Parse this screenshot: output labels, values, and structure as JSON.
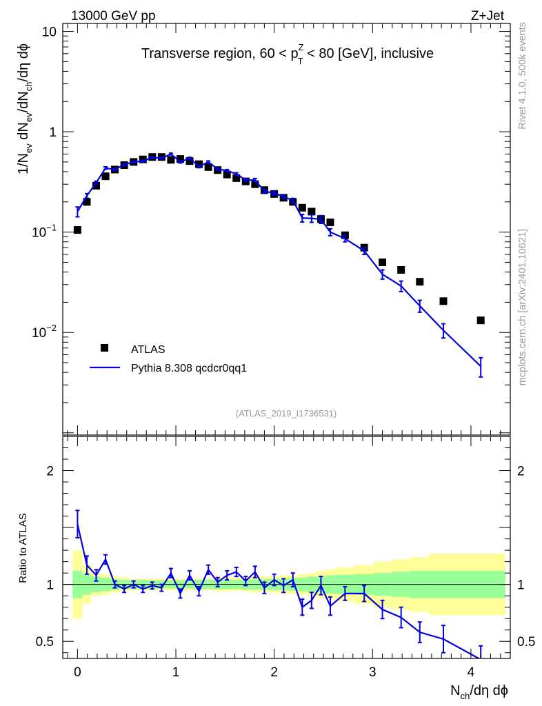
{
  "header": {
    "left": "13000 GeV pp",
    "right": "Z+Jet"
  },
  "side": {
    "rivet": "Rivet 4.1.0,  500k events",
    "mcplots": "mcplots.cern.ch [arXiv:2401.10621]"
  },
  "chart_data": {
    "type": "scatter",
    "title_parts": {
      "prefix": "Transverse region, 60 < p",
      "sup": "Z",
      "sub": "T",
      "suffix": " < 80 [GeV], inclusive"
    },
    "analysis_id": "(ATLAS_2019_I1736531)",
    "xlabel": "N_ch/dη dϕ",
    "ylabel": "1/N_ev dN_ev/dN_ch/dη dϕ",
    "ratio_ylabel": "Ratio to ATLAS",
    "xlim": [
      -0.15,
      4.4
    ],
    "ylim": [
      0.00095,
      12
    ],
    "ratio_ylim": [
      0.35,
      2.3
    ],
    "yscale": "log",
    "x_ticks": [
      "0",
      "1",
      "2",
      "3",
      "4"
    ],
    "y_ticks": [
      {
        "value": 10,
        "base": "10",
        "exp": ""
      },
      {
        "value": 1,
        "base": "1",
        "exp": ""
      },
      {
        "value": 0.1,
        "base": "10",
        "exp": "−1"
      },
      {
        "value": 0.01,
        "base": "10",
        "exp": "−2"
      }
    ],
    "ratio_y_ticks": [
      "0.5",
      "1",
      "2"
    ],
    "legend": {
      "position": "bottom-left",
      "data_label": "ATLAS",
      "mc_label": "Pythia 8.308 qcdcr0qq1"
    },
    "colors": {
      "data": "#000000",
      "mc": "#0000e0",
      "band_inner": "#99ff99",
      "band_outer": "#ffff99"
    },
    "data": {
      "name": "ATLAS",
      "x": [
        0.0,
        0.095,
        0.19,
        0.285,
        0.38,
        0.475,
        0.57,
        0.665,
        0.76,
        0.855,
        0.95,
        1.045,
        1.14,
        1.235,
        1.33,
        1.425,
        1.52,
        1.615,
        1.71,
        1.805,
        1.9,
        2.0,
        2.095,
        2.19,
        2.285,
        2.38,
        2.475,
        2.57,
        2.72,
        2.915,
        3.1,
        3.29,
        3.48,
        3.72,
        4.1
      ],
      "y": [
        0.105,
        0.2,
        0.29,
        0.36,
        0.42,
        0.465,
        0.5,
        0.53,
        0.56,
        0.56,
        0.525,
        0.535,
        0.51,
        0.475,
        0.445,
        0.415,
        0.375,
        0.345,
        0.32,
        0.3,
        0.262,
        0.24,
        0.22,
        0.2,
        0.175,
        0.16,
        0.135,
        0.125,
        0.093,
        0.07,
        0.05,
        0.042,
        0.032,
        0.0205,
        0.0132
      ]
    },
    "mc": {
      "name": "Pythia 8.308 qcdcr0qq1",
      "x": [
        0.0,
        0.095,
        0.19,
        0.285,
        0.38,
        0.475,
        0.57,
        0.665,
        0.76,
        0.855,
        0.95,
        1.045,
        1.14,
        1.235,
        1.33,
        1.425,
        1.52,
        1.615,
        1.71,
        1.805,
        1.9,
        2.0,
        2.095,
        2.19,
        2.285,
        2.38,
        2.475,
        2.57,
        2.72,
        2.915,
        3.1,
        3.29,
        3.48,
        3.72,
        4.1
      ],
      "y": [
        0.16,
        0.23,
        0.31,
        0.435,
        0.42,
        0.47,
        0.5,
        0.51,
        0.555,
        0.545,
        0.6,
        0.5,
        0.545,
        0.45,
        0.5,
        0.425,
        0.41,
        0.38,
        0.33,
        0.33,
        0.255,
        0.245,
        0.225,
        0.207,
        0.138,
        0.137,
        0.134,
        0.1,
        0.086,
        0.065,
        0.038,
        0.029,
        0.0184,
        0.0105,
        0.0046
      ],
      "yerr": [
        0.018,
        0.012,
        0.012,
        0.012,
        0.01,
        0.01,
        0.01,
        0.01,
        0.01,
        0.01,
        0.012,
        0.012,
        0.012,
        0.012,
        0.012,
        0.01,
        0.01,
        0.01,
        0.012,
        0.012,
        0.012,
        0.01,
        0.01,
        0.01,
        0.012,
        0.012,
        0.012,
        0.008,
        0.006,
        0.005,
        0.004,
        0.0035,
        0.0025,
        0.0017,
        0.001
      ],
      "ratio": [
        1.53,
        1.17,
        1.08,
        1.22,
        1.0,
        0.96,
        1.0,
        0.96,
        0.99,
        0.97,
        1.1,
        0.92,
        1.08,
        0.94,
        1.13,
        1.02,
        1.08,
        1.11,
        1.03,
        1.11,
        0.97,
        1.04,
        0.99,
        1.04,
        0.8,
        0.86,
        0.99,
        0.81,
        0.92,
        0.92,
        0.78,
        0.71,
        0.58,
        0.52,
        0.34
      ],
      "ratio_err": [
        0.12,
        0.08,
        0.05,
        0.04,
        0.03,
        0.03,
        0.03,
        0.03,
        0.03,
        0.03,
        0.04,
        0.04,
        0.04,
        0.04,
        0.04,
        0.04,
        0.04,
        0.04,
        0.04,
        0.05,
        0.05,
        0.05,
        0.06,
        0.06,
        0.07,
        0.07,
        0.08,
        0.08,
        0.06,
        0.07,
        0.08,
        0.09,
        0.09,
        0.12,
        0.12
      ]
    },
    "bands": {
      "edges": [
        -0.05,
        0.05,
        0.14,
        0.24,
        0.33,
        0.43,
        0.52,
        0.62,
        0.71,
        0.81,
        0.9,
        1.0,
        1.09,
        1.19,
        1.28,
        1.38,
        1.47,
        1.57,
        1.66,
        1.76,
        1.85,
        1.95,
        2.05,
        2.14,
        2.24,
        2.33,
        2.43,
        2.52,
        2.62,
        2.82,
        3.01,
        3.19,
        3.38,
        3.57,
        3.86,
        4.35
      ],
      "inner": [
        0.12,
        0.09,
        0.07,
        0.06,
        0.045,
        0.04,
        0.04,
        0.04,
        0.035,
        0.035,
        0.035,
        0.035,
        0.035,
        0.04,
        0.04,
        0.04,
        0.04,
        0.04,
        0.045,
        0.045,
        0.045,
        0.05,
        0.05,
        0.055,
        0.06,
        0.07,
        0.07,
        0.08,
        0.085,
        0.09,
        0.1,
        0.11,
        0.12,
        0.12,
        0.12
      ],
      "outer": [
        0.3,
        0.17,
        0.1,
        0.09,
        0.07,
        0.06,
        0.05,
        0.05,
        0.05,
        0.05,
        0.05,
        0.05,
        0.05,
        0.05,
        0.05,
        0.06,
        0.06,
        0.06,
        0.06,
        0.07,
        0.07,
        0.07,
        0.08,
        0.08,
        0.09,
        0.1,
        0.12,
        0.13,
        0.15,
        0.17,
        0.2,
        0.22,
        0.24,
        0.27,
        0.27
      ]
    }
  }
}
